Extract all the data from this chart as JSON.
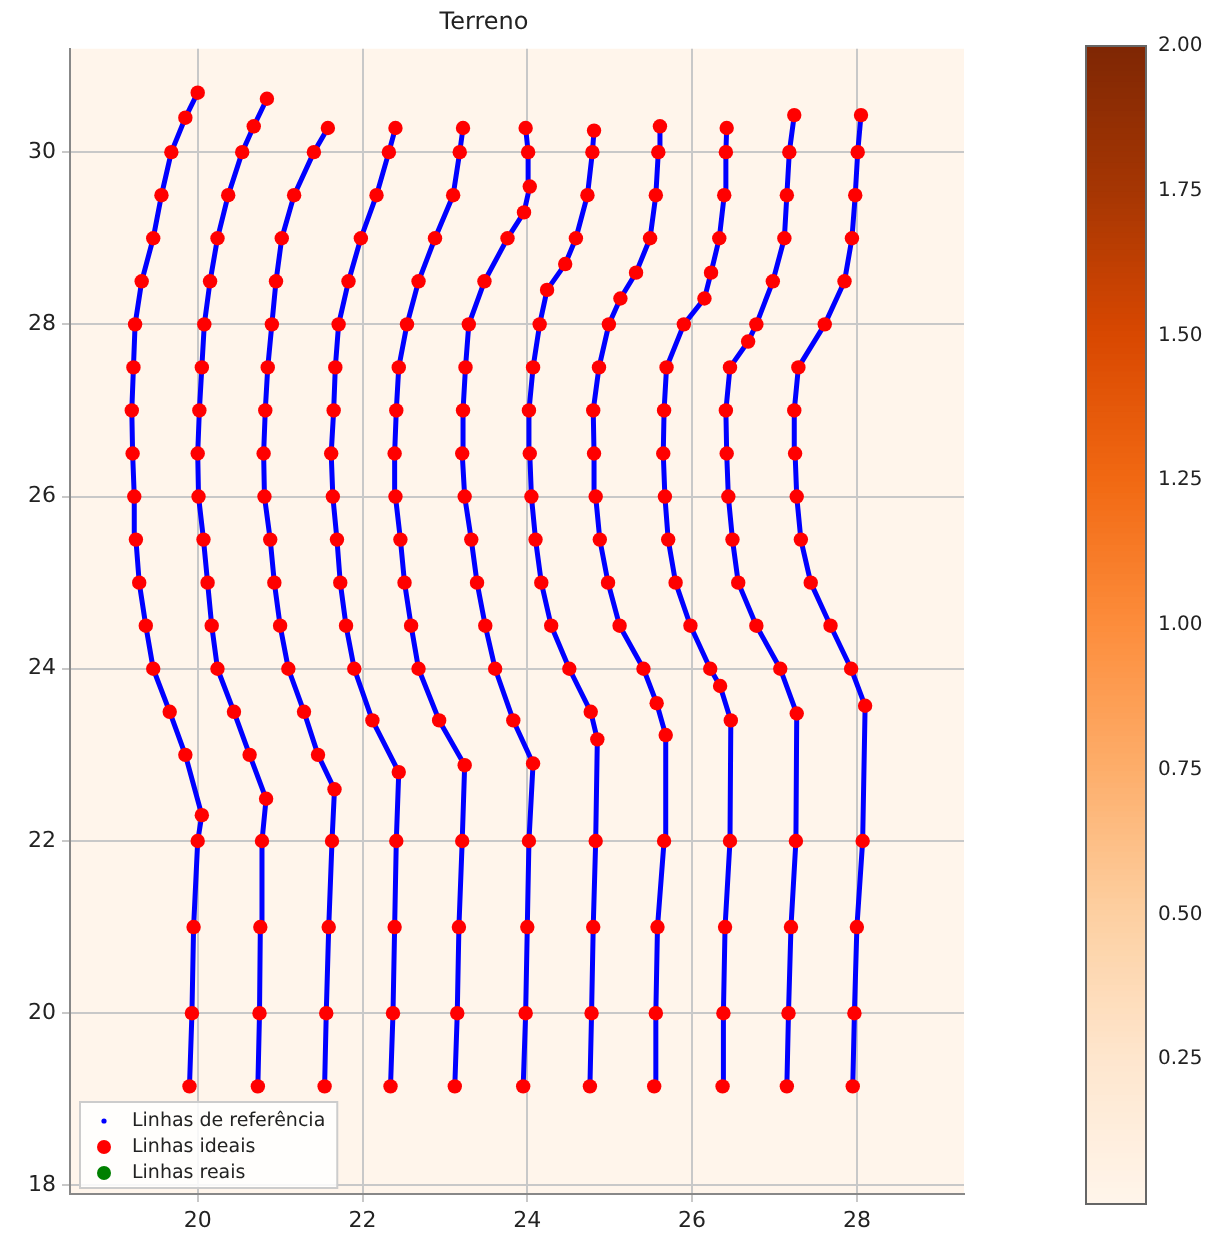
{
  "chart_data": {
    "type": "scatter",
    "title": "Terreno",
    "xlim": [
      18.45,
      29.3
    ],
    "ylim": [
      17.9,
      31.2
    ],
    "xticks": [
      20,
      22,
      24,
      26,
      28
    ],
    "yticks": [
      18,
      20,
      22,
      24,
      26,
      28,
      30
    ],
    "grid": true,
    "legend": "bottom left",
    "clim": [
      0,
      2
    ],
    "cticks": [
      {
        "value": 0.25,
        "label": "0.25"
      },
      {
        "value": 0.5,
        "label": "0.50"
      },
      {
        "value": 0.75,
        "label": "0.75"
      },
      {
        "value": 1,
        "label": "1.00"
      },
      {
        "value": 1.25,
        "label": "1.25"
      },
      {
        "value": 1.5,
        "label": "1.50"
      },
      {
        "value": 1.75,
        "label": "1.75"
      },
      {
        "value": 2,
        "label": "2.00"
      }
    ],
    "series": [
      {
        "name": "Linhas de referência",
        "type": "line",
        "color": "#0000ff",
        "x": [
          19.9,
          19.93,
          19.95,
          20.0,
          20.05,
          19.85,
          19.66,
          19.46,
          19.37,
          19.29,
          19.25,
          19.23,
          19.21,
          19.2,
          19.22,
          19.24,
          19.32,
          19.46,
          19.56,
          19.68,
          19.85,
          20.0,
          null,
          20.73,
          20.75,
          20.76,
          20.78,
          20.83,
          20.63,
          20.44,
          20.24,
          20.17,
          20.12,
          20.07,
          20.01,
          20.0,
          20.02,
          20.05,
          20.08,
          20.15,
          20.24,
          20.37,
          20.54,
          20.68,
          20.84,
          null,
          21.54,
          21.56,
          21.59,
          21.63,
          21.66,
          21.46,
          21.29,
          21.1,
          21.0,
          20.93,
          20.88,
          20.81,
          20.8,
          20.82,
          20.85,
          20.9,
          20.95,
          21.02,
          21.17,
          21.41,
          21.58,
          null,
          22.34,
          22.37,
          22.39,
          22.41,
          22.44,
          22.12,
          21.9,
          21.8,
          21.73,
          21.69,
          21.64,
          21.62,
          21.65,
          21.67,
          21.71,
          21.83,
          21.98,
          22.17,
          22.32,
          22.4,
          null,
          23.12,
          23.15,
          23.17,
          23.21,
          23.24,
          22.93,
          22.68,
          22.59,
          22.51,
          22.46,
          22.4,
          22.39,
          22.41,
          22.44,
          22.54,
          22.68,
          22.88,
          23.1,
          23.18,
          23.22,
          null,
          23.95,
          23.98,
          24.0,
          24.02,
          24.07,
          23.83,
          23.61,
          23.49,
          23.39,
          23.32,
          23.24,
          23.21,
          23.22,
          23.25,
          23.29,
          23.48,
          23.76,
          23.96,
          24.03,
          24.01,
          23.98,
          null,
          24.76,
          24.78,
          24.8,
          24.83,
          24.85,
          24.77,
          24.51,
          24.29,
          24.17,
          24.1,
          24.05,
          24.03,
          24.02,
          24.07,
          24.15,
          24.24,
          24.46,
          24.59,
          24.73,
          24.79,
          24.81,
          null,
          25.54,
          25.56,
          25.58,
          25.66,
          25.68,
          25.57,
          25.41,
          25.12,
          24.98,
          24.88,
          24.83,
          24.81,
          24.8,
          24.87,
          24.99,
          25.13,
          25.32,
          25.49,
          25.56,
          25.59,
          25.61,
          null,
          26.37,
          26.38,
          26.4,
          26.46,
          26.47,
          26.34,
          26.22,
          25.98,
          25.8,
          25.71,
          25.67,
          25.65,
          25.66,
          25.69,
          25.9,
          26.15,
          26.23,
          26.33,
          26.39,
          26.41,
          26.42,
          null,
          27.15,
          27.17,
          27.2,
          27.26,
          27.27,
          27.07,
          26.78,
          26.56,
          26.49,
          26.44,
          26.42,
          26.41,
          26.46,
          26.68,
          26.78,
          26.98,
          27.12,
          27.15,
          27.18,
          27.24,
          null,
          27.95,
          27.97,
          28.0,
          28.07,
          28.1,
          27.93,
          27.68,
          27.44,
          27.32,
          27.27,
          27.25,
          27.24,
          27.29,
          27.61,
          27.85,
          27.94,
          27.98,
          28.01,
          28.05
        ],
        "values": [
          19.15,
          20,
          21,
          22,
          22.3,
          23,
          23.5,
          24,
          24.5,
          25,
          25.5,
          26,
          26.5,
          27,
          27.5,
          28,
          28.5,
          29,
          29.5,
          30,
          30.4,
          30.69,
          null,
          19.15,
          20,
          21,
          22,
          22.49,
          23,
          23.5,
          24,
          24.5,
          25,
          25.5,
          26,
          26.5,
          27,
          27.5,
          28,
          28.5,
          29,
          29.5,
          30,
          30.3,
          30.62,
          null,
          19.15,
          20,
          21,
          22,
          22.6,
          23,
          23.5,
          24,
          24.5,
          25,
          25.5,
          26,
          26.5,
          27,
          27.5,
          28,
          28.5,
          29,
          29.5,
          30,
          30.28,
          null,
          19.15,
          20,
          21,
          22,
          22.8,
          23.4,
          24,
          24.5,
          25,
          25.5,
          26,
          26.5,
          27,
          27.5,
          28,
          28.5,
          29,
          29.5,
          30,
          30.28,
          null,
          19.15,
          20,
          21,
          22,
          22.88,
          23.4,
          24,
          24.5,
          25,
          25.5,
          26,
          26.5,
          27,
          27.5,
          28,
          28.5,
          29,
          29.5,
          30,
          30.28,
          null,
          19.15,
          20,
          21,
          22,
          22.9,
          23.4,
          24,
          24.5,
          25,
          25.5,
          26,
          26.5,
          27,
          27.5,
          28,
          28.5,
          29,
          29.3,
          29.6,
          30,
          30.28,
          null,
          19.15,
          20,
          21,
          22,
          23.18,
          23.5,
          24,
          24.5,
          25,
          25.5,
          26,
          26.5,
          27,
          27.5,
          28,
          28.4,
          28.7,
          29,
          29.5,
          30,
          30.25,
          null,
          19.15,
          20,
          21,
          22,
          23.23,
          23.6,
          24,
          24.5,
          25,
          25.5,
          26,
          26.5,
          27,
          27.5,
          28,
          28.3,
          28.6,
          29,
          29.5,
          30,
          30.3,
          null,
          19.15,
          20,
          21,
          22,
          23.4,
          23.8,
          24,
          24.5,
          25,
          25.5,
          26,
          26.5,
          27,
          27.5,
          28,
          28.3,
          28.6,
          29,
          29.5,
          30,
          30.28,
          null,
          19.15,
          20,
          21,
          22,
          23.48,
          24,
          24.5,
          25,
          25.5,
          26,
          26.5,
          27,
          27.5,
          27.8,
          28,
          28.5,
          29,
          29.5,
          30,
          30.43,
          null,
          19.15,
          20,
          21,
          22,
          23.57,
          24,
          24.5,
          25,
          25.5,
          26,
          26.5,
          27,
          27.5,
          28,
          28.5,
          29,
          29.5,
          30,
          30.43
        ]
      },
      {
        "name": "Linhas ideais",
        "marker": "circle",
        "color": "#ff0000",
        "x": [
          19.9,
          19.93,
          19.95,
          20.0,
          20.05,
          19.85,
          19.66,
          19.46,
          19.37,
          19.29,
          19.25,
          19.23,
          19.21,
          19.2,
          19.22,
          19.24,
          19.32,
          19.46,
          19.56,
          19.68,
          19.85,
          20.0,
          null,
          20.73,
          20.75,
          20.76,
          20.78,
          20.83,
          20.63,
          20.44,
          20.24,
          20.17,
          20.12,
          20.07,
          20.01,
          20.0,
          20.02,
          20.05,
          20.08,
          20.15,
          20.24,
          20.37,
          20.54,
          20.68,
          20.84,
          null,
          21.54,
          21.56,
          21.59,
          21.63,
          21.66,
          21.46,
          21.29,
          21.1,
          21.0,
          20.93,
          20.88,
          20.81,
          20.8,
          20.82,
          20.85,
          20.9,
          20.95,
          21.02,
          21.17,
          21.41,
          21.58,
          null,
          22.34,
          22.37,
          22.39,
          22.41,
          22.44,
          22.12,
          21.9,
          21.8,
          21.73,
          21.69,
          21.64,
          21.62,
          21.65,
          21.67,
          21.71,
          21.83,
          21.98,
          22.17,
          22.32,
          22.4,
          null,
          23.12,
          23.15,
          23.17,
          23.21,
          23.24,
          22.93,
          22.68,
          22.59,
          22.51,
          22.46,
          22.4,
          22.39,
          22.41,
          22.44,
          22.54,
          22.68,
          22.88,
          23.1,
          23.18,
          23.22,
          null,
          23.95,
          23.98,
          24.0,
          24.02,
          24.07,
          23.83,
          23.61,
          23.49,
          23.39,
          23.32,
          23.24,
          23.21,
          23.22,
          23.25,
          23.29,
          23.48,
          23.76,
          23.96,
          24.03,
          24.01,
          23.98,
          null,
          24.76,
          24.78,
          24.8,
          24.83,
          24.85,
          24.77,
          24.51,
          24.29,
          24.17,
          24.1,
          24.05,
          24.03,
          24.02,
          24.07,
          24.15,
          24.24,
          24.46,
          24.59,
          24.73,
          24.79,
          24.81,
          null,
          25.54,
          25.56,
          25.58,
          25.66,
          25.68,
          25.57,
          25.41,
          25.12,
          24.98,
          24.88,
          24.83,
          24.81,
          24.8,
          24.87,
          24.99,
          25.13,
          25.32,
          25.49,
          25.56,
          25.59,
          25.61,
          null,
          26.37,
          26.38,
          26.4,
          26.46,
          26.47,
          26.34,
          26.22,
          25.98,
          25.8,
          25.71,
          25.67,
          25.65,
          25.66,
          25.69,
          25.9,
          26.15,
          26.23,
          26.33,
          26.39,
          26.41,
          26.42,
          null,
          27.15,
          27.17,
          27.2,
          27.26,
          27.27,
          27.07,
          26.78,
          26.56,
          26.49,
          26.44,
          26.42,
          26.41,
          26.46,
          26.68,
          26.78,
          26.98,
          27.12,
          27.15,
          27.18,
          27.24,
          null,
          27.95,
          27.97,
          28.0,
          28.07,
          28.1,
          27.93,
          27.68,
          27.44,
          27.32,
          27.27,
          27.25,
          27.24,
          27.29,
          27.61,
          27.85,
          27.94,
          27.98,
          28.01,
          28.05
        ],
        "values": [
          19.15,
          20,
          21,
          22,
          22.3,
          23,
          23.5,
          24,
          24.5,
          25,
          25.5,
          26,
          26.5,
          27,
          27.5,
          28,
          28.5,
          29,
          29.5,
          30,
          30.4,
          30.69,
          null,
          19.15,
          20,
          21,
          22,
          22.49,
          23,
          23.5,
          24,
          24.5,
          25,
          25.5,
          26,
          26.5,
          27,
          27.5,
          28,
          28.5,
          29,
          29.5,
          30,
          30.3,
          30.62,
          null,
          19.15,
          20,
          21,
          22,
          22.6,
          23,
          23.5,
          24,
          24.5,
          25,
          25.5,
          26,
          26.5,
          27,
          27.5,
          28,
          28.5,
          29,
          29.5,
          30,
          30.28,
          null,
          19.15,
          20,
          21,
          22,
          22.8,
          23.4,
          24,
          24.5,
          25,
          25.5,
          26,
          26.5,
          27,
          27.5,
          28,
          28.5,
          29,
          29.5,
          30,
          30.28,
          null,
          19.15,
          20,
          21,
          22,
          22.88,
          23.4,
          24,
          24.5,
          25,
          25.5,
          26,
          26.5,
          27,
          27.5,
          28,
          28.5,
          29,
          29.5,
          30,
          30.28,
          null,
          19.15,
          20,
          21,
          22,
          22.9,
          23.4,
          24,
          24.5,
          25,
          25.5,
          26,
          26.5,
          27,
          27.5,
          28,
          28.5,
          29,
          29.3,
          29.6,
          30,
          30.28,
          null,
          19.15,
          20,
          21,
          22,
          23.18,
          23.5,
          24,
          24.5,
          25,
          25.5,
          26,
          26.5,
          27,
          27.5,
          28,
          28.4,
          28.7,
          29,
          29.5,
          30,
          30.25,
          null,
          19.15,
          20,
          21,
          22,
          23.23,
          23.6,
          24,
          24.5,
          25,
          25.5,
          26,
          26.5,
          27,
          27.5,
          28,
          28.3,
          28.6,
          29,
          29.5,
          30,
          30.3,
          null,
          19.15,
          20,
          21,
          22,
          23.4,
          23.8,
          24,
          24.5,
          25,
          25.5,
          26,
          26.5,
          27,
          27.5,
          28,
          28.3,
          28.6,
          29,
          29.5,
          30,
          30.28,
          null,
          19.15,
          20,
          21,
          22,
          23.48,
          24,
          24.5,
          25,
          25.5,
          26,
          26.5,
          27,
          27.5,
          27.8,
          28,
          28.5,
          29,
          29.5,
          30,
          30.43,
          null,
          19.15,
          20,
          21,
          22,
          23.57,
          24,
          24.5,
          25,
          25.5,
          26,
          26.5,
          27,
          27.5,
          28,
          28.5,
          29,
          29.5,
          30,
          30.43
        ]
      },
      {
        "name": "Linhas reais",
        "marker": "circle",
        "color": "#008000"
      }
    ]
  }
}
